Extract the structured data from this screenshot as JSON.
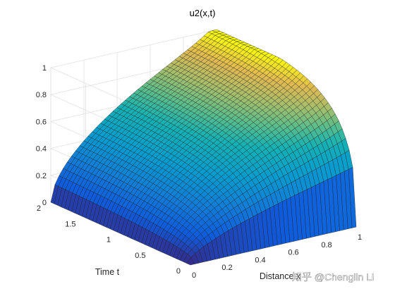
{
  "chart_data": {
    "type": "surface",
    "title": "u2(x,t)",
    "xlabel": "Distance x",
    "ylabel": "Time t",
    "zlabel": "",
    "xlim": [
      0,
      1
    ],
    "ylim": [
      0,
      2
    ],
    "zlim": [
      0,
      1
    ],
    "x_ticks": [
      "0",
      "0.2",
      "0.4",
      "0.6",
      "0.8",
      "1"
    ],
    "y_ticks": [
      "0",
      "0.5",
      "1",
      "1.5",
      "2"
    ],
    "z_ticks": [
      "0",
      "0.2",
      "0.4",
      "0.6",
      "0.8",
      "1"
    ],
    "grid": true,
    "colormap": "parula",
    "x_samples": [
      0.0,
      0.05,
      0.1,
      0.2,
      0.3,
      0.4,
      0.5,
      0.6,
      0.7,
      0.8,
      0.9,
      0.95,
      1.0
    ],
    "t_samples": [
      0.0,
      0.01,
      0.02,
      0.05,
      0.1,
      0.2,
      0.3,
      0.5,
      0.7,
      1.0,
      1.5,
      2.0
    ],
    "u_values": [
      [
        0,
        0,
        0,
        0,
        0,
        0,
        0,
        0,
        0,
        0,
        0,
        0,
        0
      ],
      [
        0,
        0.06,
        0.1,
        0.12,
        0.125,
        0.13,
        0.135,
        0.14,
        0.145,
        0.15,
        0.16,
        0.17,
        0.19
      ],
      [
        0,
        0.07,
        0.11,
        0.13,
        0.14,
        0.145,
        0.15,
        0.155,
        0.16,
        0.165,
        0.18,
        0.19,
        0.22
      ],
      [
        0,
        0.075,
        0.12,
        0.145,
        0.155,
        0.165,
        0.17,
        0.18,
        0.19,
        0.2,
        0.22,
        0.24,
        0.3
      ],
      [
        0,
        0.08,
        0.13,
        0.16,
        0.175,
        0.19,
        0.2,
        0.21,
        0.22,
        0.24,
        0.27,
        0.3,
        0.38
      ],
      [
        0,
        0.09,
        0.15,
        0.2,
        0.23,
        0.25,
        0.27,
        0.29,
        0.31,
        0.34,
        0.38,
        0.42,
        0.5
      ],
      [
        0,
        0.1,
        0.17,
        0.24,
        0.28,
        0.31,
        0.34,
        0.37,
        0.4,
        0.44,
        0.49,
        0.54,
        0.6
      ],
      [
        0,
        0.12,
        0.21,
        0.31,
        0.37,
        0.42,
        0.47,
        0.51,
        0.55,
        0.6,
        0.65,
        0.69,
        0.74
      ],
      [
        0,
        0.14,
        0.24,
        0.37,
        0.45,
        0.52,
        0.57,
        0.62,
        0.67,
        0.71,
        0.76,
        0.79,
        0.83
      ],
      [
        0,
        0.16,
        0.28,
        0.43,
        0.53,
        0.61,
        0.67,
        0.72,
        0.77,
        0.81,
        0.85,
        0.87,
        0.9
      ],
      [
        0,
        0.18,
        0.31,
        0.49,
        0.6,
        0.69,
        0.75,
        0.8,
        0.85,
        0.88,
        0.91,
        0.93,
        0.95
      ],
      [
        0,
        0.19,
        0.33,
        0.52,
        0.64,
        0.73,
        0.8,
        0.85,
        0.89,
        0.92,
        0.95,
        0.97,
        0.98
      ]
    ],
    "watermark": "知乎 @Chenglin Li"
  }
}
